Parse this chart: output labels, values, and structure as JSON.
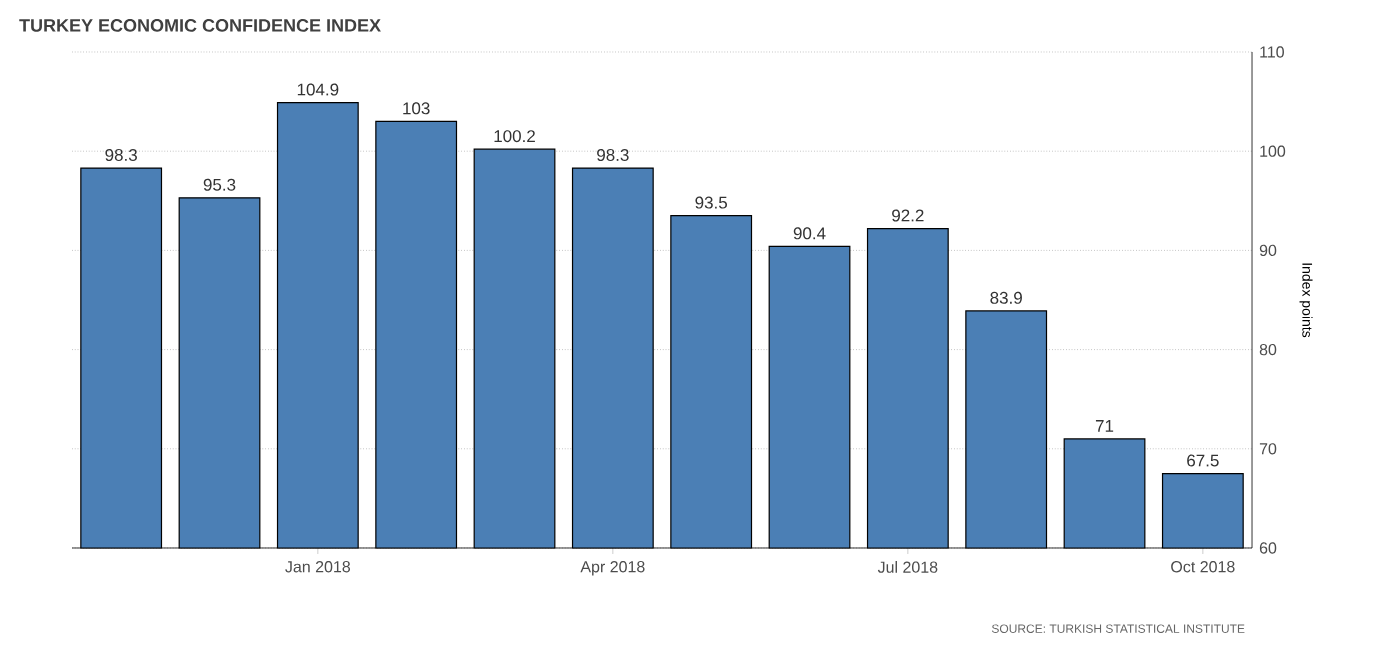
{
  "chart_data": {
    "type": "bar",
    "title": "TURKEY ECONOMIC CONFIDENCE INDEX",
    "ylabel": "Index points",
    "annotations": [
      "SOURCE: TURKISH STATISTICAL INSTITUTE"
    ],
    "categories": [
      null,
      null,
      "Jan 2018",
      null,
      null,
      "Apr 2018",
      null,
      null,
      "Jul 2018",
      null,
      null,
      "Oct 2018"
    ],
    "values": [
      98.3,
      95.3,
      104.9,
      103,
      100.2,
      98.3,
      93.5,
      90.4,
      92.2,
      83.9,
      71,
      67.5
    ],
    "color": "#4b7fb5",
    "ylim": [
      60,
      110
    ],
    "yticks": [
      60,
      70,
      80,
      90,
      100,
      110
    ],
    "grid": "y",
    "data_labels": true
  }
}
